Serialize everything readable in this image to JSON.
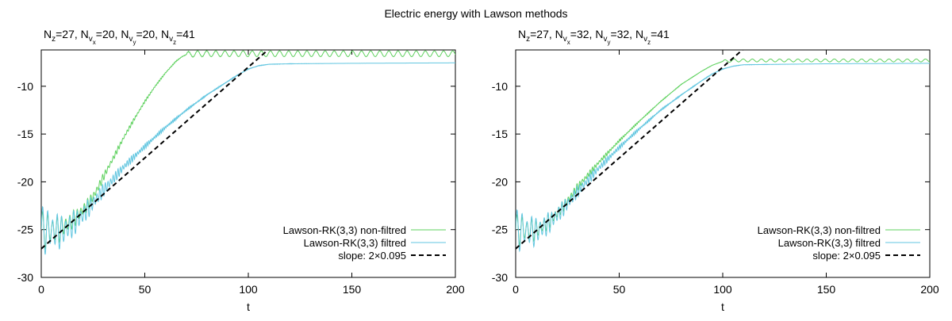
{
  "figure_title": "Electric energy with Lawson methods",
  "colors": {
    "non_filtred": "#5ed15e",
    "filtred": "#62c6e0",
    "slope": "#000000"
  },
  "chart_data": [
    {
      "type": "line",
      "title_parts": [
        {
          "t": "N",
          "s": "base"
        },
        {
          "t": "z",
          "s": "sub"
        },
        {
          "t": "=27, ",
          "s": "base"
        },
        {
          "t": "N",
          "s": "base"
        },
        {
          "t": "v",
          "s": "sub"
        },
        {
          "t": "x",
          "s": "subsub"
        },
        {
          "t": "=20, ",
          "s": "base"
        },
        {
          "t": "N",
          "s": "base"
        },
        {
          "t": "v",
          "s": "sub"
        },
        {
          "t": "y",
          "s": "subsub"
        },
        {
          "t": "=20, ",
          "s": "base"
        },
        {
          "t": "N",
          "s": "base"
        },
        {
          "t": "v",
          "s": "sub"
        },
        {
          "t": "z",
          "s": "subsub"
        },
        {
          "t": "=41",
          "s": "base"
        }
      ],
      "xlabel": "t",
      "ylabel": "",
      "xlim": [
        0,
        200
      ],
      "ylim": [
        -30,
        -6.2
      ],
      "xticks": [
        0,
        50,
        100,
        150,
        200
      ],
      "yticks": [
        -30,
        -25,
        -20,
        -15,
        -10
      ],
      "grid": false,
      "legend_position": "bottom-right",
      "series": [
        {
          "name": "Lawson-RK(3,3) non-filtred",
          "style": "solid",
          "color_key": "non_filtred",
          "osc_start": {
            "t": 0,
            "amp": 2.2,
            "period": 2.6,
            "decay": 0.055,
            "freq_growth": 0.012
          },
          "points": [
            [
              0,
              -25.0
            ],
            [
              8,
              -25.0
            ],
            [
              14,
              -24.2
            ],
            [
              18,
              -23.4
            ],
            [
              22,
              -22.5
            ],
            [
              26,
              -21.2
            ],
            [
              30,
              -19.5
            ],
            [
              36,
              -17.0
            ],
            [
              40,
              -15.3
            ],
            [
              45,
              -13.4
            ],
            [
              50,
              -11.6
            ],
            [
              55,
              -10.0
            ],
            [
              60,
              -8.6
            ],
            [
              65,
              -7.4
            ],
            [
              68,
              -6.9
            ],
            [
              70,
              -6.7
            ],
            [
              75,
              -6.6
            ],
            [
              100,
              -6.6
            ],
            [
              150,
              -6.6
            ],
            [
              200,
              -6.6
            ]
          ],
          "osc_end": {
            "from": 70,
            "amp": 0.3,
            "period": 4.4
          }
        },
        {
          "name": "Lawson-RK(3,3) filtred",
          "style": "solid",
          "color_key": "filtred",
          "osc_start": {
            "t": 0,
            "amp": 2.8,
            "period": 2.6,
            "decay": 0.045,
            "freq_growth": 0.012
          },
          "points": [
            [
              0,
              -25.0
            ],
            [
              10,
              -25.2
            ],
            [
              15,
              -24.5
            ],
            [
              20,
              -23.5
            ],
            [
              25,
              -22.2
            ],
            [
              30,
              -20.9
            ],
            [
              40,
              -18.4
            ],
            [
              50,
              -16.3
            ],
            [
              60,
              -14.3
            ],
            [
              70,
              -12.5
            ],
            [
              80,
              -10.9
            ],
            [
              90,
              -9.5
            ],
            [
              95,
              -8.8
            ],
            [
              100,
              -8.2
            ],
            [
              105,
              -7.85
            ],
            [
              110,
              -7.7
            ],
            [
              120,
              -7.65
            ],
            [
              150,
              -7.6
            ],
            [
              200,
              -7.55
            ]
          ]
        },
        {
          "name": "slope: 2×0.095",
          "style": "dashed",
          "color_key": "slope",
          "line": {
            "x0": 0,
            "y0": -27.0,
            "x1": 110,
            "y1": -6.1
          }
        }
      ]
    },
    {
      "type": "line",
      "title_parts": [
        {
          "t": "N",
          "s": "base"
        },
        {
          "t": "z",
          "s": "sub"
        },
        {
          "t": "=27, ",
          "s": "base"
        },
        {
          "t": "N",
          "s": "base"
        },
        {
          "t": "v",
          "s": "sub"
        },
        {
          "t": "x",
          "s": "subsub"
        },
        {
          "t": "=32, ",
          "s": "base"
        },
        {
          "t": "N",
          "s": "base"
        },
        {
          "t": "v",
          "s": "sub"
        },
        {
          "t": "y",
          "s": "subsub"
        },
        {
          "t": "=32, ",
          "s": "base"
        },
        {
          "t": "N",
          "s": "base"
        },
        {
          "t": "v",
          "s": "sub"
        },
        {
          "t": "z",
          "s": "subsub"
        },
        {
          "t": "=41",
          "s": "base"
        }
      ],
      "xlabel": "t",
      "ylabel": "",
      "xlim": [
        0,
        200
      ],
      "ylim": [
        -30,
        -6.2
      ],
      "xticks": [
        0,
        50,
        100,
        150,
        200
      ],
      "yticks": [
        -30,
        -25,
        -20,
        -15,
        -10
      ],
      "grid": false,
      "legend_position": "bottom-right",
      "series": [
        {
          "name": "Lawson-RK(3,3) non-filtred",
          "style": "solid",
          "color_key": "non_filtred",
          "osc_start": {
            "t": 0,
            "amp": 1.8,
            "period": 2.6,
            "decay": 0.05,
            "freq_growth": 0.012
          },
          "points": [
            [
              0,
              -25.0
            ],
            [
              10,
              -25.0
            ],
            [
              15,
              -24.3
            ],
            [
              20,
              -23.3
            ],
            [
              25,
              -22.0
            ],
            [
              30,
              -20.5
            ],
            [
              40,
              -18.0
            ],
            [
              50,
              -15.7
            ],
            [
              60,
              -13.6
            ],
            [
              70,
              -11.6
            ],
            [
              80,
              -9.8
            ],
            [
              90,
              -8.4
            ],
            [
              95,
              -7.8
            ],
            [
              100,
              -7.4
            ],
            [
              105,
              -7.3
            ],
            [
              120,
              -7.3
            ],
            [
              150,
              -7.3
            ],
            [
              200,
              -7.3
            ]
          ],
          "osc_end": {
            "from": 100,
            "amp": 0.15,
            "period": 4.4
          }
        },
        {
          "name": "Lawson-RK(3,3) filtred",
          "style": "solid",
          "color_key": "filtred",
          "osc_start": {
            "t": 0,
            "amp": 2.4,
            "period": 2.6,
            "decay": 0.045,
            "freq_growth": 0.012
          },
          "points": [
            [
              0,
              -25.0
            ],
            [
              10,
              -25.2
            ],
            [
              15,
              -24.5
            ],
            [
              20,
              -23.5
            ],
            [
              25,
              -22.3
            ],
            [
              30,
              -21.0
            ],
            [
              40,
              -18.6
            ],
            [
              50,
              -16.4
            ],
            [
              60,
              -14.4
            ],
            [
              70,
              -12.5
            ],
            [
              80,
              -10.9
            ],
            [
              90,
              -9.4
            ],
            [
              95,
              -8.7
            ],
            [
              100,
              -8.2
            ],
            [
              105,
              -7.9
            ],
            [
              110,
              -7.75
            ],
            [
              150,
              -7.65
            ],
            [
              200,
              -7.6
            ]
          ]
        },
        {
          "name": "slope: 2×0.095",
          "style": "dashed",
          "color_key": "slope",
          "line": {
            "x0": 0,
            "y0": -27.0,
            "x1": 110,
            "y1": -6.1
          }
        }
      ]
    }
  ]
}
